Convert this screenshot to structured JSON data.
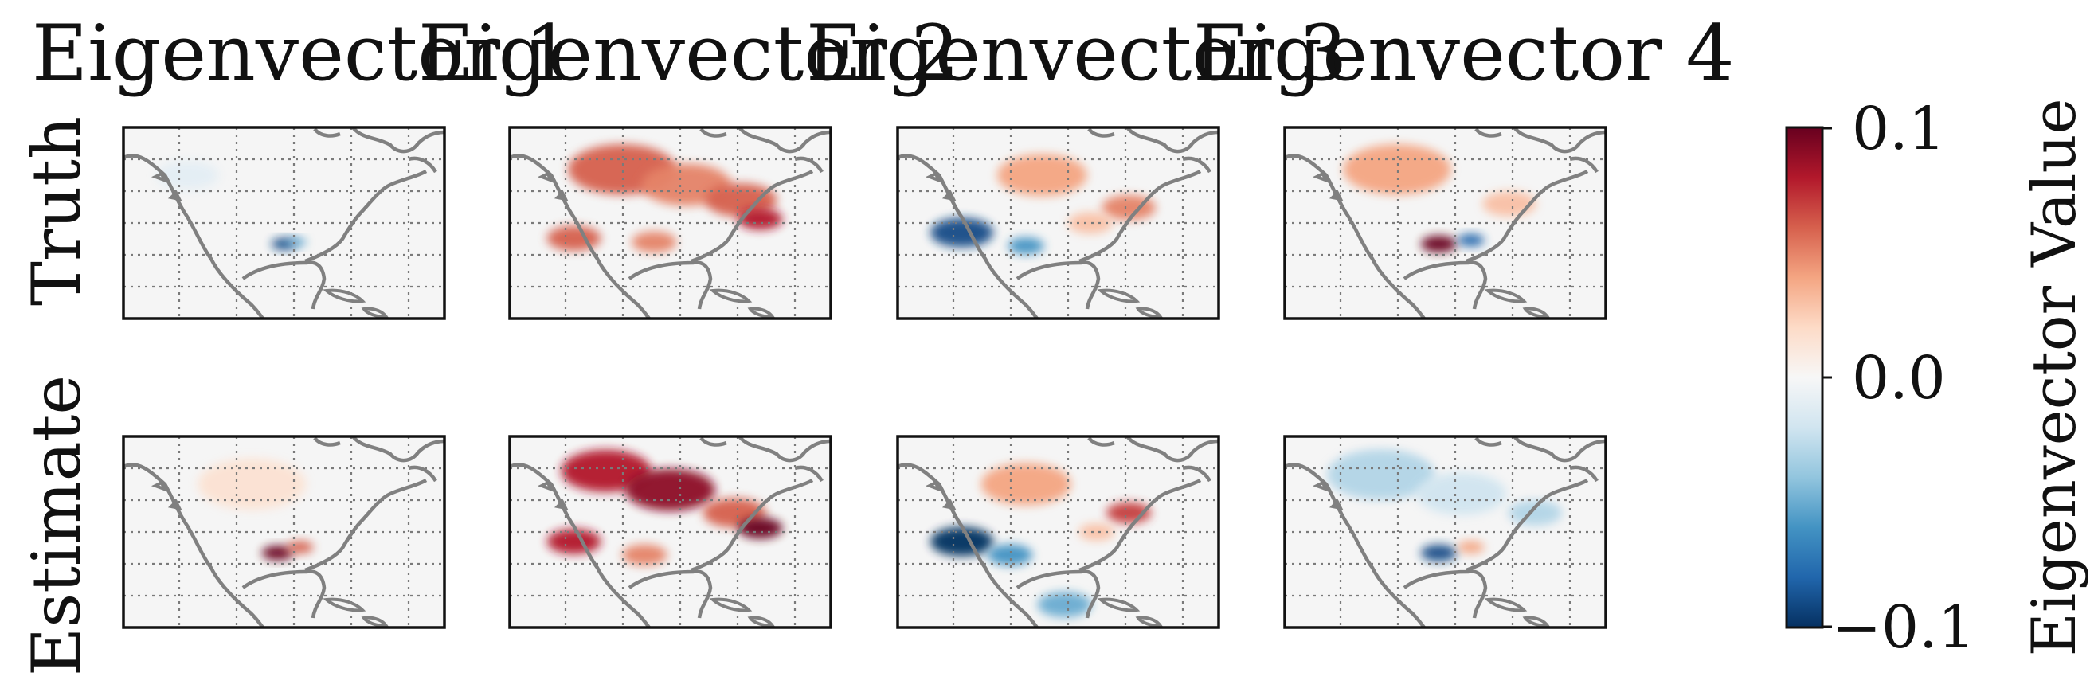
{
  "figure": {
    "column_titles": [
      "Eigenvector 1",
      "Eigenvector 2",
      "Eigenvector 3",
      "Eigenvector 4"
    ],
    "row_labels": [
      "Truth",
      "Estimate"
    ],
    "colormap": "RdBu_r",
    "colorbar": {
      "label": "Eigenvector Value",
      "ticks": [
        0.1,
        0.0,
        -0.1
      ],
      "tick_labels": [
        "0.1",
        "0.0",
        "−0.1"
      ],
      "range": [
        -0.1,
        0.1
      ]
    },
    "colors": {
      "coast": "#808080",
      "grid": "#7a7a7a",
      "map_background": "#f5f5f5",
      "frame": "#111111"
    }
  },
  "chart_data": {
    "type": "heatmap",
    "subtitle_note": "",
    "value_label": "Eigenvector Value",
    "vmin": -0.1,
    "vmax": 0.1,
    "panels": [
      {
        "row": "Truth",
        "column": "Eigenvector 1",
        "features": [
          [
            0.5,
            0.61,
            0.028,
            -0.09
          ],
          [
            0.54,
            0.6,
            0.022,
            -0.05
          ],
          [
            0.2,
            0.25,
            0.07,
            -0.01
          ]
        ]
      },
      {
        "row": "Truth",
        "column": "Eigenvector 2",
        "features": [
          [
            0.35,
            0.22,
            0.12,
            0.06
          ],
          [
            0.55,
            0.3,
            0.1,
            0.05
          ],
          [
            0.72,
            0.38,
            0.08,
            0.06
          ],
          [
            0.78,
            0.48,
            0.05,
            0.08
          ],
          [
            0.2,
            0.58,
            0.06,
            0.06
          ],
          [
            0.45,
            0.6,
            0.05,
            0.05
          ]
        ]
      },
      {
        "row": "Truth",
        "column": "Eigenvector 3",
        "features": [
          [
            0.45,
            0.25,
            0.1,
            0.04
          ],
          [
            0.72,
            0.42,
            0.06,
            0.05
          ],
          [
            0.2,
            0.55,
            0.07,
            -0.09
          ],
          [
            0.4,
            0.62,
            0.04,
            -0.06
          ],
          [
            0.6,
            0.5,
            0.05,
            0.03
          ]
        ]
      },
      {
        "row": "Truth",
        "column": "Eigenvector 4",
        "features": [
          [
            0.35,
            0.22,
            0.12,
            0.04
          ],
          [
            0.7,
            0.4,
            0.06,
            0.03
          ],
          [
            0.48,
            0.61,
            0.04,
            0.1
          ],
          [
            0.58,
            0.59,
            0.03,
            -0.08
          ]
        ]
      },
      {
        "row": "Estimate",
        "column": "Eigenvector 1",
        "features": [
          [
            0.4,
            0.25,
            0.12,
            0.015
          ],
          [
            0.48,
            0.61,
            0.035,
            0.1
          ],
          [
            0.55,
            0.58,
            0.03,
            0.06
          ]
        ]
      },
      {
        "row": "Estimate",
        "column": "Eigenvector 2",
        "features": [
          [
            0.3,
            0.18,
            0.1,
            0.08
          ],
          [
            0.5,
            0.28,
            0.1,
            0.09
          ],
          [
            0.7,
            0.4,
            0.07,
            0.06
          ],
          [
            0.78,
            0.48,
            0.05,
            0.1
          ],
          [
            0.2,
            0.55,
            0.06,
            0.08
          ],
          [
            0.42,
            0.62,
            0.05,
            0.05
          ]
        ]
      },
      {
        "row": "Estimate",
        "column": "Eigenvector 3",
        "features": [
          [
            0.4,
            0.25,
            0.1,
            0.04
          ],
          [
            0.72,
            0.4,
            0.05,
            0.07
          ],
          [
            0.2,
            0.55,
            0.07,
            -0.1
          ],
          [
            0.35,
            0.62,
            0.05,
            -0.06
          ],
          [
            0.52,
            0.88,
            0.06,
            -0.05
          ],
          [
            0.62,
            0.5,
            0.04,
            0.03
          ]
        ]
      },
      {
        "row": "Estimate",
        "column": "Eigenvector 4",
        "features": [
          [
            0.3,
            0.2,
            0.12,
            -0.03
          ],
          [
            0.55,
            0.3,
            0.1,
            -0.02
          ],
          [
            0.78,
            0.4,
            0.06,
            -0.03
          ],
          [
            0.48,
            0.61,
            0.04,
            -0.09
          ],
          [
            0.58,
            0.58,
            0.03,
            0.04
          ]
        ]
      }
    ]
  }
}
